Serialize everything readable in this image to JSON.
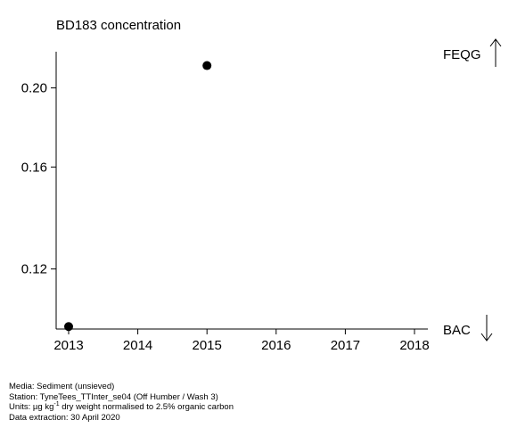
{
  "chart_data": {
    "type": "scatter",
    "title": "BD183 concentration",
    "xlabel": "",
    "ylabel": "",
    "x_ticks": [
      "2013",
      "2014",
      "2015",
      "2016",
      "2017",
      "2018"
    ],
    "y_ticks": [
      "0.12",
      "0.16",
      "0.20"
    ],
    "xlim": [
      2013,
      2018
    ],
    "y_scale": "log",
    "ylim": [
      0.1013,
      0.2215
    ],
    "points": [
      {
        "x": 2013,
        "y": 0.102
      },
      {
        "x": 2015,
        "y": 0.213
      }
    ],
    "grid": false,
    "reference_lines": [
      {
        "label": "FEQG",
        "direction": "above"
      },
      {
        "label": "BAC",
        "direction": "below"
      }
    ]
  },
  "footer": {
    "media": "Media: Sediment (unsieved)",
    "station": "Station: TyneTees_TTInter_se04 (Off Humber / Wash 3)",
    "units_pre": "Units:  µg kg",
    "units_sup": "-1",
    "units_post": " dry weight normalised to 2.5% organic carbon",
    "extraction": "Data extraction: 30 April 2020"
  }
}
